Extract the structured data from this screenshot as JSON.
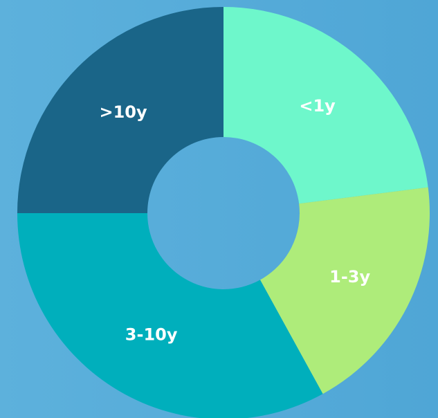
{
  "chart_data": {
    "type": "donut",
    "categories": [
      "<1y",
      "1-3y",
      "3-10y",
      ">10y"
    ],
    "values": [
      23,
      19,
      33,
      25
    ],
    "colors": [
      "#6ef7cb",
      "#aeec7a",
      "#00afbc",
      "#1a6588"
    ]
  }
}
